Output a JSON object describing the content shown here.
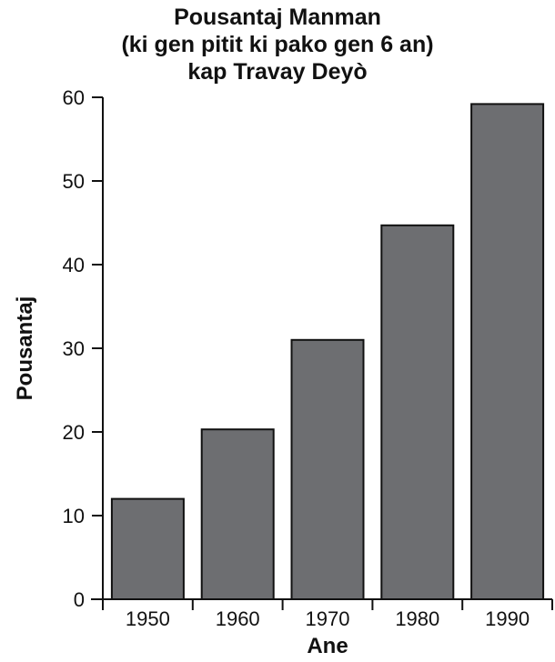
{
  "chart_data": {
    "type": "bar",
    "title_lines": [
      "Pousantaj Manman",
      "(ki gen pitit ki pako gen 6 an)",
      "kap Travay Deyò"
    ],
    "categories": [
      "1950",
      "1960",
      "1970",
      "1980",
      "1990"
    ],
    "values": [
      12,
      20.3,
      31,
      44.7,
      59.2
    ],
    "xlabel": "Ane",
    "ylabel": "Pousantaj",
    "ylim": [
      0,
      60
    ],
    "yticks": [
      "0",
      "10",
      "20",
      "30",
      "40",
      "50",
      "60"
    ],
    "grid": false,
    "legend": "none",
    "bar_color": "#6d6e71",
    "edge_color": "#111111"
  }
}
